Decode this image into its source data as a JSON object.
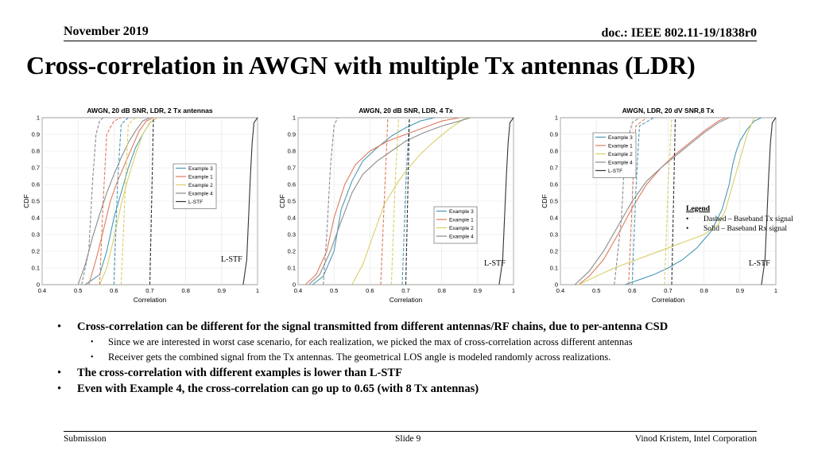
{
  "header": {
    "date": "November 2019",
    "doc": "doc.: IEEE 802.11-19/1838r0"
  },
  "title": "Cross-correlation in AWGN with multiple Tx antennas (LDR)",
  "lstf_label": "L-STF",
  "legend_note": {
    "heading": "Legend",
    "items": [
      "Dashed – Baseband Tx signal",
      "Solid – Baseband Rx signal"
    ]
  },
  "bullets": [
    {
      "text": "Cross-correlation can be different for the signal transmitted from different antennas/RF chains, due to per-antenna CSD",
      "sub": [
        "Since we are interested in worst case scenario, for each realization, we picked the max of cross-correlation across different antennas",
        "Receiver gets the combined signal from the Tx antennas. The geometrical LOS angle is modeled randomly across realizations."
      ]
    },
    {
      "text": "The cross-correlation with different examples is lower than L-STF",
      "sub": []
    },
    {
      "text": "Even with Example 4, the cross-correlation can go up to 0.65 (with 8 Tx antennas)",
      "sub": []
    }
  ],
  "footer": {
    "left": "Submission",
    "center": "Slide 9",
    "right": "Vinod Kristem, Intel Corporation"
  },
  "colors": {
    "example3": "#4a9ab5",
    "example1": "#e07a5f",
    "example2": "#d8cf66",
    "example4": "#8c8c8c",
    "lstf": "#333333"
  },
  "chart_data": [
    {
      "type": "line",
      "title": "AWGN, 20 dB SNR, LDR, 2 Tx antennas",
      "xlabel": "Correlation",
      "ylabel": "CDF",
      "xlim": [
        0.4,
        1
      ],
      "ylim": [
        0,
        1
      ],
      "xticks": [
        0.4,
        0.5,
        0.6,
        0.7,
        0.8,
        0.9,
        1
      ],
      "yticks": [
        0,
        0.1,
        0.2,
        0.3,
        0.4,
        0.5,
        0.6,
        0.7,
        0.8,
        0.9,
        1
      ],
      "legend": {
        "position": "right",
        "entries": [
          "Example 3",
          "Example 1",
          "Example 2",
          "Example 4",
          "L-STF"
        ]
      },
      "series": [
        {
          "name": "Example 3",
          "style": "solid",
          "x": [
            0.52,
            0.56,
            0.58,
            0.6,
            0.62,
            0.64,
            0.66,
            0.68,
            0.7,
            0.72
          ],
          "y": [
            0,
            0.06,
            0.2,
            0.4,
            0.55,
            0.7,
            0.82,
            0.9,
            0.97,
            1
          ]
        },
        {
          "name": "Example 1",
          "style": "solid",
          "x": [
            0.53,
            0.55,
            0.57,
            0.59,
            0.61,
            0.63,
            0.65,
            0.67,
            0.69,
            0.71
          ],
          "y": [
            0,
            0.15,
            0.32,
            0.5,
            0.62,
            0.72,
            0.82,
            0.92,
            0.98,
            1
          ]
        },
        {
          "name": "Example 2",
          "style": "solid",
          "x": [
            0.56,
            0.58,
            0.6,
            0.62,
            0.64,
            0.66,
            0.68,
            0.7,
            0.72
          ],
          "y": [
            0,
            0.1,
            0.28,
            0.48,
            0.64,
            0.78,
            0.9,
            0.97,
            1
          ]
        },
        {
          "name": "Example 4",
          "style": "solid",
          "x": [
            0.5,
            0.52,
            0.54,
            0.56,
            0.58,
            0.6,
            0.62,
            0.64,
            0.66,
            0.68,
            0.7
          ],
          "y": [
            0,
            0.12,
            0.28,
            0.42,
            0.55,
            0.66,
            0.76,
            0.85,
            0.92,
            0.98,
            1
          ]
        },
        {
          "name": "L-STF",
          "style": "solid",
          "x": [
            0.96,
            0.97,
            0.975,
            0.98,
            0.985,
            0.99,
            1
          ],
          "y": [
            0,
            0.15,
            0.4,
            0.65,
            0.85,
            0.97,
            1
          ]
        },
        {
          "name": "Example 4",
          "style": "dashed",
          "x": [
            0.51,
            0.53,
            0.54,
            0.55,
            0.56,
            0.57
          ],
          "y": [
            0,
            0.2,
            0.6,
            0.9,
            0.98,
            1
          ]
        },
        {
          "name": "Example 1",
          "style": "dashed",
          "x": [
            0.56,
            0.57,
            0.58,
            0.6,
            0.62
          ],
          "y": [
            0,
            0.5,
            0.9,
            0.98,
            1
          ]
        },
        {
          "name": "Example 2",
          "style": "dashed",
          "x": [
            0.62,
            0.63,
            0.64,
            0.66
          ],
          "y": [
            0,
            0.5,
            0.96,
            1
          ]
        },
        {
          "name": "Example 3",
          "style": "dashed",
          "x": [
            0.6,
            0.61,
            0.62,
            0.64
          ],
          "y": [
            0,
            0.6,
            0.96,
            1
          ]
        },
        {
          "name": "L-STF",
          "style": "dashed",
          "x": [
            0.7,
            0.705,
            0.71
          ],
          "y": [
            0,
            0.5,
            1
          ]
        }
      ]
    },
    {
      "type": "line",
      "title": "AWGN, 20 dB SNR, LDR, 4 Tx",
      "xlabel": "Correlation",
      "ylabel": "CDF",
      "xlim": [
        0.4,
        1
      ],
      "ylim": [
        0,
        1
      ],
      "xticks": [
        0.4,
        0.5,
        0.6,
        0.7,
        0.8,
        0.9,
        1
      ],
      "yticks": [
        0,
        0.1,
        0.2,
        0.3,
        0.4,
        0.5,
        0.6,
        0.7,
        0.8,
        0.9,
        1
      ],
      "legend": {
        "position": "lower-right",
        "entries": [
          "Example 3",
          "Example 1",
          "Example 2",
          "Example 4"
        ]
      },
      "series": [
        {
          "name": "Example 3",
          "style": "solid",
          "x": [
            0.44,
            0.47,
            0.5,
            0.52,
            0.55,
            0.58,
            0.62,
            0.66,
            0.7,
            0.74,
            0.78
          ],
          "y": [
            0,
            0.05,
            0.2,
            0.45,
            0.62,
            0.74,
            0.82,
            0.89,
            0.94,
            0.98,
            1
          ]
        },
        {
          "name": "Example 1",
          "style": "solid",
          "x": [
            0.42,
            0.45,
            0.48,
            0.5,
            0.53,
            0.56,
            0.6,
            0.65,
            0.7,
            0.75,
            0.8,
            0.85
          ],
          "y": [
            0,
            0.06,
            0.2,
            0.4,
            0.6,
            0.72,
            0.8,
            0.86,
            0.9,
            0.94,
            0.98,
            1
          ]
        },
        {
          "name": "Example 2",
          "style": "solid",
          "x": [
            0.55,
            0.58,
            0.61,
            0.64,
            0.66,
            0.68,
            0.7,
            0.74,
            0.78,
            0.82,
            0.86,
            0.88
          ],
          "y": [
            0,
            0.12,
            0.3,
            0.48,
            0.55,
            0.62,
            0.68,
            0.78,
            0.86,
            0.93,
            0.99,
            1
          ]
        },
        {
          "name": "Example 4",
          "style": "solid",
          "x": [
            0.43,
            0.46,
            0.49,
            0.52,
            0.55,
            0.58,
            0.62,
            0.66,
            0.7,
            0.75,
            0.8,
            0.85,
            0.88
          ],
          "y": [
            0,
            0.06,
            0.2,
            0.38,
            0.55,
            0.66,
            0.74,
            0.8,
            0.86,
            0.91,
            0.95,
            0.98,
            1
          ]
        },
        {
          "name": "L-STF",
          "style": "solid",
          "x": [
            0.96,
            0.97,
            0.975,
            0.98,
            0.985,
            0.99,
            1
          ],
          "y": [
            0,
            0.15,
            0.4,
            0.65,
            0.85,
            0.97,
            1
          ]
        },
        {
          "name": "Example 4",
          "style": "dashed",
          "x": [
            0.47,
            0.48,
            0.49,
            0.5,
            0.51
          ],
          "y": [
            0,
            0.3,
            0.7,
            0.95,
            1
          ]
        },
        {
          "name": "Example 1",
          "style": "dashed",
          "x": [
            0.63,
            0.64,
            0.65
          ],
          "y": [
            0,
            0.5,
            1
          ]
        },
        {
          "name": "Example 2",
          "style": "dashed",
          "x": [
            0.66,
            0.67,
            0.68
          ],
          "y": [
            0,
            0.6,
            1
          ]
        },
        {
          "name": "Example 3",
          "style": "dashed",
          "x": [
            0.69,
            0.7,
            0.71
          ],
          "y": [
            0,
            0.6,
            1
          ]
        },
        {
          "name": "L-STF",
          "style": "dashed",
          "x": [
            0.7,
            0.705,
            0.71
          ],
          "y": [
            0,
            0.5,
            1
          ]
        }
      ]
    },
    {
      "type": "line",
      "title": "AWGN, LDR, 20 dV SNR,8 Tx",
      "xlabel": "Correlation",
      "ylabel": "CDF",
      "xlim": [
        0.4,
        1
      ],
      "ylim": [
        0,
        1
      ],
      "xticks": [
        0.4,
        0.5,
        0.6,
        0.7,
        0.8,
        0.9,
        1
      ],
      "yticks": [
        0,
        0.1,
        0.2,
        0.3,
        0.4,
        0.5,
        0.6,
        0.7,
        0.8,
        0.9,
        1
      ],
      "legend": {
        "position": "top-left",
        "entries": [
          "Example 3",
          "Example 1",
          "Example 2",
          "Example 4",
          "L-STF"
        ]
      },
      "series": [
        {
          "name": "Example 3",
          "style": "solid",
          "x": [
            0.58,
            0.62,
            0.66,
            0.7,
            0.74,
            0.78,
            0.82,
            0.85,
            0.87,
            0.88,
            0.89,
            0.9,
            0.92,
            0.94,
            0.96
          ],
          "y": [
            0,
            0.03,
            0.06,
            0.1,
            0.15,
            0.22,
            0.32,
            0.45,
            0.6,
            0.72,
            0.8,
            0.86,
            0.93,
            0.98,
            1
          ]
        },
        {
          "name": "Example 1",
          "style": "solid",
          "x": [
            0.45,
            0.48,
            0.52,
            0.56,
            0.6,
            0.64,
            0.68,
            0.72,
            0.76,
            0.8,
            0.84,
            0.86
          ],
          "y": [
            0,
            0.05,
            0.15,
            0.3,
            0.46,
            0.6,
            0.7,
            0.78,
            0.85,
            0.92,
            0.98,
            1
          ]
        },
        {
          "name": "Example 2",
          "style": "solid",
          "x": [
            0.45,
            0.5,
            0.55,
            0.6,
            0.65,
            0.7,
            0.75,
            0.8,
            0.84,
            0.86,
            0.88,
            0.9,
            0.92,
            0.94
          ],
          "y": [
            0,
            0.05,
            0.1,
            0.14,
            0.18,
            0.22,
            0.26,
            0.3,
            0.36,
            0.45,
            0.6,
            0.75,
            0.9,
            1
          ]
        },
        {
          "name": "Example 4",
          "style": "solid",
          "x": [
            0.44,
            0.48,
            0.52,
            0.56,
            0.6,
            0.64,
            0.68,
            0.72,
            0.76,
            0.8,
            0.84,
            0.87
          ],
          "y": [
            0,
            0.08,
            0.2,
            0.35,
            0.5,
            0.62,
            0.7,
            0.77,
            0.84,
            0.91,
            0.97,
            1
          ]
        },
        {
          "name": "L-STF",
          "style": "solid",
          "x": [
            0.96,
            0.97,
            0.975,
            0.98,
            0.985,
            0.99,
            1
          ],
          "y": [
            0,
            0.15,
            0.4,
            0.65,
            0.85,
            0.97,
            1
          ]
        },
        {
          "name": "Example 4",
          "style": "dashed",
          "x": [
            0.55,
            0.57,
            0.58,
            0.6,
            0.62
          ],
          "y": [
            0,
            0.4,
            0.8,
            0.97,
            1
          ]
        },
        {
          "name": "Example 1",
          "style": "dashed",
          "x": [
            0.59,
            0.6,
            0.61,
            0.64
          ],
          "y": [
            0,
            0.5,
            0.95,
            1
          ]
        },
        {
          "name": "Example 3",
          "style": "dashed",
          "x": [
            0.6,
            0.61,
            0.62,
            0.66
          ],
          "y": [
            0,
            0.55,
            0.95,
            1
          ]
        },
        {
          "name": "Example 2",
          "style": "dashed",
          "x": [
            0.69,
            0.7,
            0.71
          ],
          "y": [
            0,
            0.6,
            1
          ]
        },
        {
          "name": "L-STF",
          "style": "dashed",
          "x": [
            0.71,
            0.715,
            0.72
          ],
          "y": [
            0,
            0.5,
            1
          ]
        }
      ]
    }
  ]
}
